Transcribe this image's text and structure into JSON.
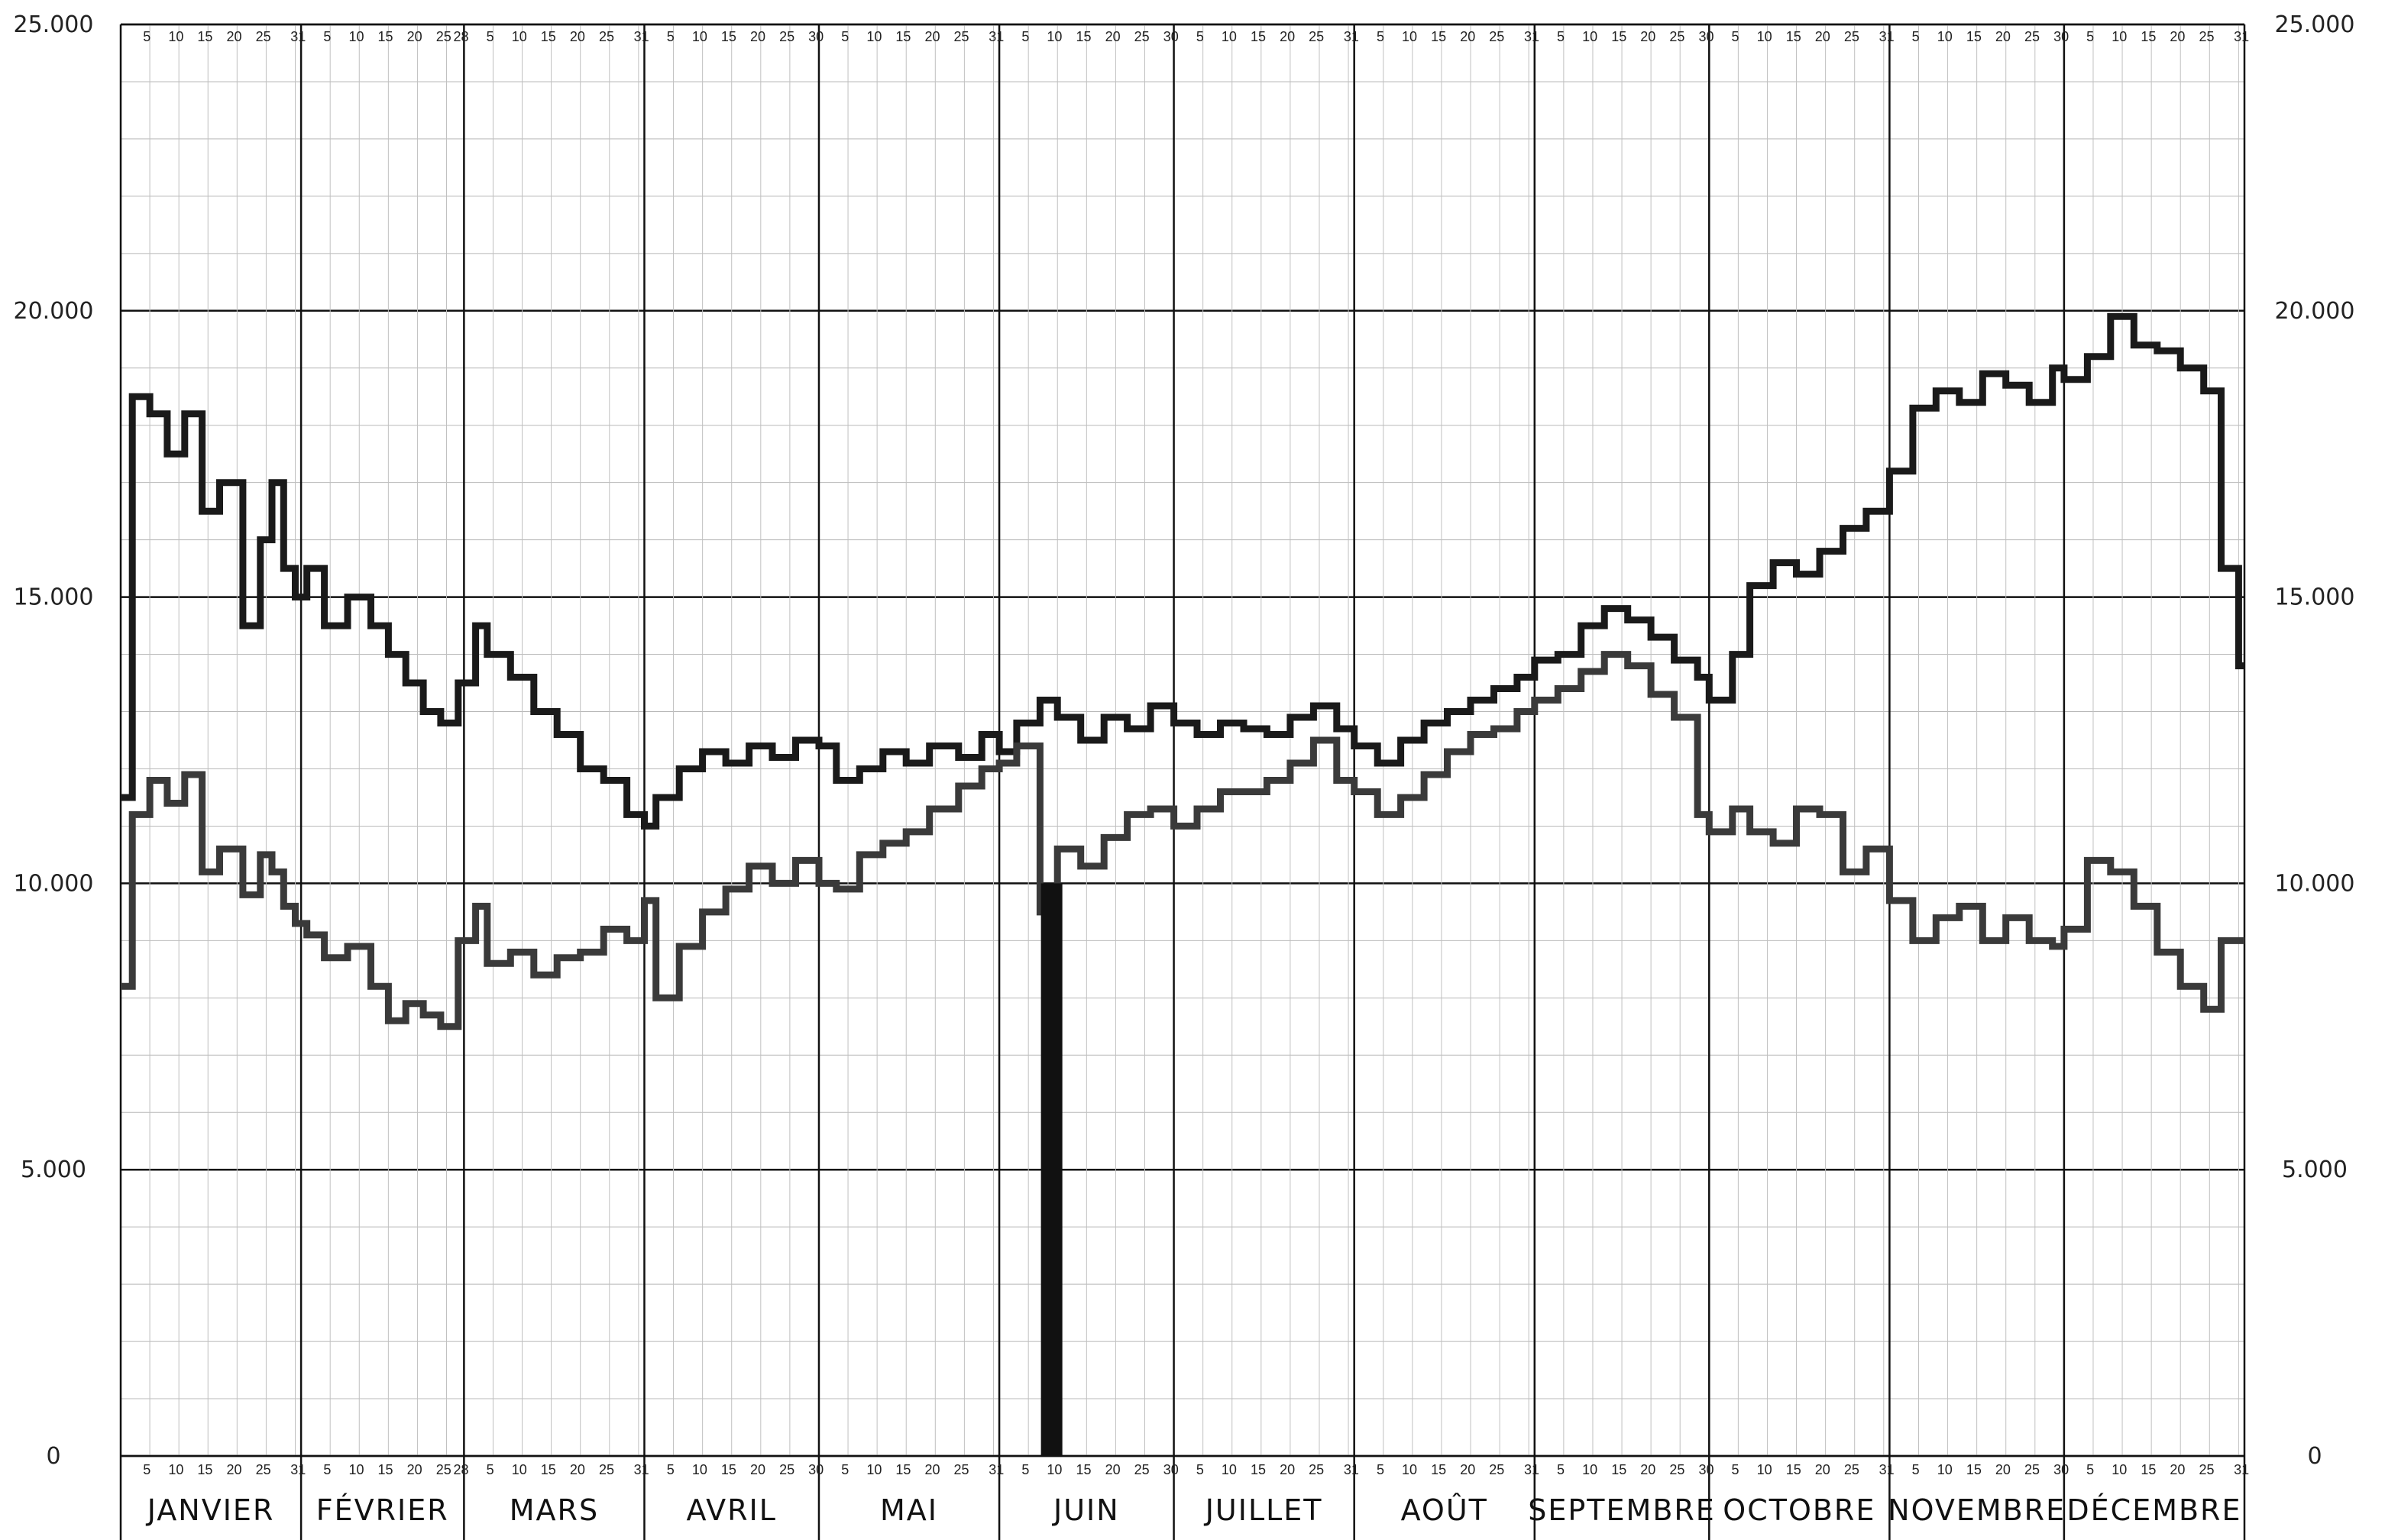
{
  "chart_data": {
    "type": "line",
    "title": "",
    "xlabel": "",
    "ylabel": "",
    "ylim": [
      0,
      25000
    ],
    "yticks": [
      {
        "value": 0,
        "label": "0"
      },
      {
        "value": 5000,
        "label": "5.000"
      },
      {
        "value": 10000,
        "label": "10.000"
      },
      {
        "value": 15000,
        "label": "15.000"
      },
      {
        "value": 20000,
        "label": "20.000"
      },
      {
        "value": 25000,
        "label": "25.000"
      }
    ],
    "months": [
      {
        "name": "JANVIER",
        "days": 31,
        "ticks": [
          "5",
          "10",
          "15",
          "20",
          "25",
          "31"
        ]
      },
      {
        "name": "FÉVRIER",
        "days": 28,
        "ticks": [
          "5",
          "10",
          "15",
          "20",
          "25",
          "28"
        ]
      },
      {
        "name": "MARS",
        "days": 31,
        "ticks": [
          "5",
          "10",
          "15",
          "20",
          "25",
          "31"
        ]
      },
      {
        "name": "AVRIL",
        "days": 30,
        "ticks": [
          "5",
          "10",
          "15",
          "20",
          "25",
          "30"
        ]
      },
      {
        "name": "MAI",
        "days": 31,
        "ticks": [
          "5",
          "10",
          "15",
          "20",
          "25",
          "31"
        ]
      },
      {
        "name": "JUIN",
        "days": 30,
        "ticks": [
          "5",
          "10",
          "15",
          "20",
          "25",
          "30"
        ]
      },
      {
        "name": "JUILLET",
        "days": 31,
        "ticks": [
          "5",
          "10",
          "15",
          "20",
          "25",
          "31"
        ]
      },
      {
        "name": "AOÛT",
        "days": 31,
        "ticks": [
          "5",
          "10",
          "15",
          "20",
          "25",
          "31"
        ]
      },
      {
        "name": "SEPTEMBRE",
        "days": 30,
        "ticks": [
          "5",
          "10",
          "15",
          "20",
          "25",
          "30"
        ]
      },
      {
        "name": "OCTOBRE",
        "days": 31,
        "ticks": [
          "5",
          "10",
          "15",
          "20",
          "25",
          "31"
        ]
      },
      {
        "name": "NOVEMBRE",
        "days": 30,
        "ticks": [
          "5",
          "10",
          "15",
          "20",
          "25",
          "30"
        ]
      },
      {
        "name": "DÉCEMBRE",
        "days": 31,
        "ticks": [
          "5",
          "10",
          "15",
          "20",
          "25",
          "31"
        ]
      }
    ],
    "series": [
      {
        "stroke": "#1a1a1a",
        "values": [
          [
            1,
            11500
          ],
          [
            3,
            18500
          ],
          [
            6,
            18200
          ],
          [
            9,
            17500
          ],
          [
            12,
            18200
          ],
          [
            15,
            16500
          ],
          [
            18,
            17000
          ],
          [
            22,
            14500
          ],
          [
            25,
            16000
          ],
          [
            27,
            17000
          ],
          [
            29,
            15500
          ],
          [
            31,
            15000
          ],
          [
            33,
            15500
          ],
          [
            36,
            14500
          ],
          [
            40,
            15000
          ],
          [
            44,
            14500
          ],
          [
            47,
            14000
          ],
          [
            50,
            13500
          ],
          [
            53,
            13000
          ],
          [
            56,
            12800
          ],
          [
            59,
            13500
          ],
          [
            62,
            14500
          ],
          [
            64,
            14000
          ],
          [
            68,
            13600
          ],
          [
            72,
            13000
          ],
          [
            76,
            12600
          ],
          [
            80,
            12000
          ],
          [
            84,
            11800
          ],
          [
            88,
            11200
          ],
          [
            91,
            11000
          ],
          [
            93,
            11500
          ],
          [
            97,
            12000
          ],
          [
            101,
            12300
          ],
          [
            105,
            12100
          ],
          [
            109,
            12400
          ],
          [
            113,
            12200
          ],
          [
            117,
            12500
          ],
          [
            121,
            12400
          ],
          [
            124,
            11800
          ],
          [
            128,
            12000
          ],
          [
            132,
            12300
          ],
          [
            136,
            12100
          ],
          [
            140,
            12400
          ],
          [
            145,
            12200
          ],
          [
            149,
            12600
          ],
          [
            152,
            12300
          ],
          [
            155,
            12800
          ],
          [
            159,
            13200
          ],
          [
            162,
            12900
          ],
          [
            166,
            12500
          ],
          [
            170,
            12900
          ],
          [
            174,
            12700
          ],
          [
            178,
            13100
          ],
          [
            182,
            12800
          ],
          [
            186,
            12600
          ],
          [
            190,
            12800
          ],
          [
            194,
            12700
          ],
          [
            198,
            12600
          ],
          [
            202,
            12900
          ],
          [
            206,
            13100
          ],
          [
            210,
            12700
          ],
          [
            213,
            12400
          ],
          [
            217,
            12100
          ],
          [
            221,
            12500
          ],
          [
            225,
            12800
          ],
          [
            229,
            13000
          ],
          [
            233,
            13200
          ],
          [
            237,
            13400
          ],
          [
            241,
            13600
          ],
          [
            244,
            13900
          ],
          [
            248,
            14000
          ],
          [
            252,
            14500
          ],
          [
            256,
            14800
          ],
          [
            260,
            14600
          ],
          [
            264,
            14300
          ],
          [
            268,
            13900
          ],
          [
            272,
            13600
          ],
          [
            274,
            13200
          ],
          [
            278,
            14000
          ],
          [
            281,
            15200
          ],
          [
            285,
            15600
          ],
          [
            289,
            15400
          ],
          [
            293,
            15800
          ],
          [
            297,
            16200
          ],
          [
            301,
            16500
          ],
          [
            305,
            17200
          ],
          [
            309,
            18300
          ],
          [
            313,
            18600
          ],
          [
            317,
            18400
          ],
          [
            321,
            18900
          ],
          [
            325,
            18700
          ],
          [
            329,
            18400
          ],
          [
            333,
            19000
          ],
          [
            335,
            18800
          ],
          [
            339,
            19200
          ],
          [
            343,
            19900
          ],
          [
            347,
            19400
          ],
          [
            351,
            19300
          ],
          [
            355,
            19000
          ],
          [
            359,
            18600
          ],
          [
            362,
            15500
          ],
          [
            365,
            13800
          ]
        ]
      },
      {
        "stroke": "#3a3a3a",
        "values": [
          [
            1,
            8200
          ],
          [
            3,
            11200
          ],
          [
            6,
            11800
          ],
          [
            9,
            11400
          ],
          [
            12,
            11900
          ],
          [
            15,
            10200
          ],
          [
            18,
            10600
          ],
          [
            22,
            9800
          ],
          [
            25,
            10500
          ],
          [
            27,
            10200
          ],
          [
            29,
            9600
          ],
          [
            31,
            9300
          ],
          [
            33,
            9100
          ],
          [
            36,
            8700
          ],
          [
            40,
            8900
          ],
          [
            44,
            8200
          ],
          [
            47,
            7600
          ],
          [
            50,
            7900
          ],
          [
            53,
            7700
          ],
          [
            56,
            7500
          ],
          [
            59,
            9000
          ],
          [
            62,
            9600
          ],
          [
            64,
            8600
          ],
          [
            68,
            8800
          ],
          [
            72,
            8400
          ],
          [
            76,
            8700
          ],
          [
            80,
            8800
          ],
          [
            84,
            9200
          ],
          [
            88,
            9000
          ],
          [
            91,
            9700
          ],
          [
            93,
            8000
          ],
          [
            97,
            8900
          ],
          [
            101,
            9500
          ],
          [
            105,
            9900
          ],
          [
            109,
            10300
          ],
          [
            113,
            10000
          ],
          [
            117,
            10400
          ],
          [
            121,
            10000
          ],
          [
            124,
            9900
          ],
          [
            128,
            10500
          ],
          [
            132,
            10700
          ],
          [
            136,
            10900
          ],
          [
            140,
            11300
          ],
          [
            145,
            11700
          ],
          [
            149,
            12000
          ],
          [
            152,
            12100
          ],
          [
            155,
            12400
          ],
          [
            159,
            9500
          ],
          [
            162,
            10600
          ],
          [
            166,
            10300
          ],
          [
            170,
            10800
          ],
          [
            174,
            11200
          ],
          [
            178,
            11300
          ],
          [
            182,
            11000
          ],
          [
            186,
            11300
          ],
          [
            190,
            11600
          ],
          [
            194,
            11600
          ],
          [
            198,
            11800
          ],
          [
            202,
            12100
          ],
          [
            206,
            12500
          ],
          [
            210,
            11800
          ],
          [
            213,
            11600
          ],
          [
            217,
            11200
          ],
          [
            221,
            11500
          ],
          [
            225,
            11900
          ],
          [
            229,
            12300
          ],
          [
            233,
            12600
          ],
          [
            237,
            12700
          ],
          [
            241,
            13000
          ],
          [
            244,
            13200
          ],
          [
            248,
            13400
          ],
          [
            252,
            13700
          ],
          [
            256,
            14000
          ],
          [
            260,
            13800
          ],
          [
            264,
            13300
          ],
          [
            268,
            12900
          ],
          [
            272,
            11200
          ],
          [
            274,
            10900
          ],
          [
            278,
            11300
          ],
          [
            281,
            10900
          ],
          [
            285,
            10700
          ],
          [
            289,
            11300
          ],
          [
            293,
            11200
          ],
          [
            297,
            10200
          ],
          [
            301,
            10600
          ],
          [
            305,
            9700
          ],
          [
            309,
            9000
          ],
          [
            313,
            9400
          ],
          [
            317,
            9600
          ],
          [
            321,
            9000
          ],
          [
            325,
            9400
          ],
          [
            329,
            9000
          ],
          [
            333,
            8900
          ],
          [
            335,
            9200
          ],
          [
            339,
            10400
          ],
          [
            343,
            10200
          ],
          [
            347,
            9600
          ],
          [
            351,
            8800
          ],
          [
            355,
            8200
          ],
          [
            359,
            7800
          ],
          [
            362,
            9000
          ],
          [
            365,
            9000
          ]
        ]
      }
    ],
    "drop": {
      "day": 161,
      "value": 0,
      "stroke": "#111111"
    }
  }
}
